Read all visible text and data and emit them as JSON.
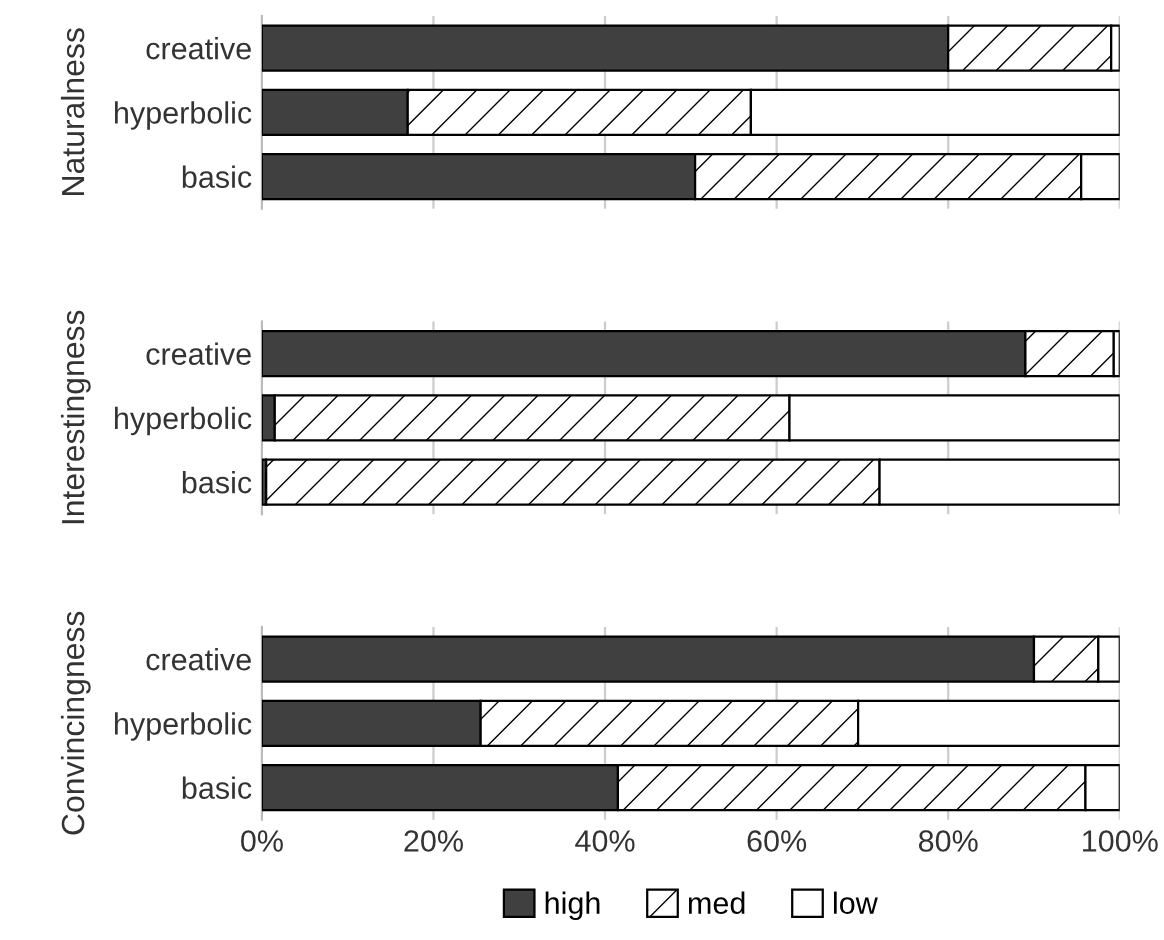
{
  "chart_data": [
    {
      "type": "bar",
      "orientation": "horizontal",
      "stacked": true,
      "ylabel": "Naturalness",
      "categories": [
        "creative",
        "hyperbolic",
        "basic"
      ],
      "series": [
        {
          "color": "#404040",
          "values": [
            80,
            17,
            50.5
          ]
        },
        {
          "color": "#ffffff",
          "values": [
            19,
            40,
            45
          ]
        },
        {
          "color": "#ffffff",
          "values": [
            1,
            43,
            4.5
          ]
        }
      ],
      "xlim": [
        0,
        100
      ],
      "xticks": [
        0,
        20,
        40,
        60,
        80,
        100
      ],
      "grid": "x",
      "tick_labels": "y"
    },
    {
      "type": "bar",
      "orientation": "horizontal",
      "stacked": true,
      "ylabel": "Interestingness",
      "categories": [
        "creative",
        "hyperbolic",
        "basic"
      ],
      "series": [
        {
          "color": "#404040",
          "values": [
            89,
            1.5,
            0.5
          ]
        },
        {
          "color": "#ffffff",
          "values": [
            10.3,
            60,
            71.5
          ]
        },
        {
          "color": "#ffffff",
          "values": [
            0.7,
            38.5,
            28
          ]
        }
      ],
      "xlim": [
        0,
        100
      ],
      "xticks": [
        0,
        20,
        40,
        60,
        80,
        100
      ],
      "grid": "x",
      "tick_labels": "y"
    },
    {
      "type": "bar",
      "orientation": "horizontal",
      "stacked": true,
      "ylabel": "Convincingness",
      "categories": [
        "creative",
        "hyperbolic",
        "basic"
      ],
      "series": [
        {
          "name": "high",
          "color": "#404040",
          "values": [
            90,
            25.5,
            41.5
          ]
        },
        {
          "name": "med",
          "color": "#ffffff",
          "values": [
            7.5,
            44,
            54.5
          ]
        },
        {
          "name": "low",
          "color": "#ffffff",
          "values": [
            2.5,
            30.5,
            4
          ]
        }
      ],
      "xlim": [
        0,
        100
      ],
      "xticks": [
        {
          "value": 0,
          "label": "0%"
        },
        {
          "value": 20,
          "label": "20%"
        },
        {
          "value": 40,
          "label": "40%"
        },
        {
          "value": 60,
          "label": "60%"
        },
        {
          "value": 80,
          "label": "80%"
        },
        {
          "value": 100,
          "label": "100%"
        }
      ],
      "grid": "x",
      "legend": "bottom"
    }
  ]
}
